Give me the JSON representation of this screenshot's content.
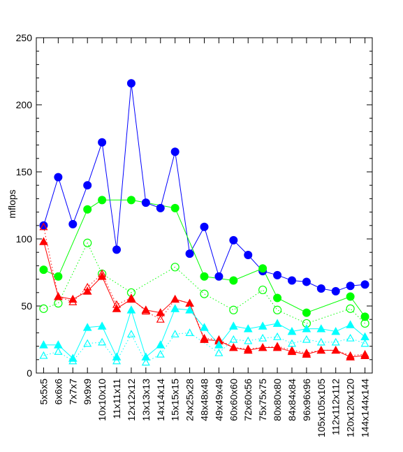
{
  "chart_data": {
    "type": "line",
    "title": "",
    "xlabel": "",
    "ylabel": "mflops",
    "ylim": [
      0,
      250
    ],
    "yticks": [
      0,
      50,
      100,
      150,
      200,
      250
    ],
    "grid": false,
    "legend": "none",
    "categories": [
      "5x5x5",
      "6x6x6",
      "7x7x7",
      "9x9x9",
      "10x10x10",
      "11x11x11",
      "12x12x12",
      "13x13x13",
      "14x14x14",
      "15x15x15",
      "24x25x28",
      "48x48x48",
      "49x49x49",
      "60x60x60",
      "72x60x56",
      "75x75x75",
      "80x80x80",
      "84x84x84",
      "96x96x96",
      "105x105x105",
      "112x112x112",
      "120x120x120",
      "144x144x144"
    ],
    "series": [
      {
        "color": "#0000ff",
        "marker": "filled-circle",
        "line": "solid",
        "values": [
          110,
          146,
          111,
          140,
          172,
          92,
          216,
          127,
          123,
          165,
          89,
          109,
          72,
          99,
          88,
          76,
          73,
          69,
          68,
          63,
          61,
          65,
          66
        ]
      },
      {
        "color": "#00ff00",
        "marker": "filled-circle",
        "line": "solid",
        "values": [
          77,
          72,
          null,
          122,
          129,
          null,
          129,
          null,
          null,
          123,
          null,
          72,
          null,
          69,
          null,
          78,
          56,
          null,
          45,
          null,
          null,
          57,
          42
        ]
      },
      {
        "color": "#00ff00",
        "marker": "open-circle",
        "line": "dotted",
        "values": [
          48,
          52,
          null,
          97,
          74,
          null,
          60,
          null,
          null,
          79,
          null,
          59,
          null,
          47,
          null,
          62,
          47,
          null,
          37,
          null,
          null,
          48,
          37
        ]
      },
      {
        "color": "#ff0000",
        "marker": "filled-triangle",
        "line": "solid",
        "values": [
          98,
          57,
          55,
          61,
          72,
          48,
          55,
          47,
          45,
          55,
          52,
          25,
          24,
          19,
          17,
          19,
          19,
          16,
          14,
          17,
          17,
          12,
          13
        ]
      },
      {
        "color": "#ff0000",
        "marker": "open-triangle",
        "line": "dotted",
        "values": [
          109,
          57,
          53,
          64,
          74,
          51,
          56,
          46,
          40,
          55,
          52,
          26,
          25,
          19,
          18,
          19,
          20,
          17,
          15,
          17,
          17,
          13,
          14
        ]
      },
      {
        "color": "#00ffff",
        "marker": "filled-triangle",
        "line": "solid",
        "values": [
          21,
          21,
          11,
          34,
          35,
          12,
          47,
          12,
          21,
          48,
          47,
          34,
          21,
          35,
          33,
          35,
          37,
          31,
          33,
          33,
          31,
          36,
          27
        ]
      },
      {
        "color": "#00ffff",
        "marker": "open-triangle",
        "line": "dotted",
        "values": [
          13,
          16,
          9,
          22,
          23,
          9,
          29,
          8,
          14,
          29,
          30,
          null,
          15,
          25,
          24,
          26,
          27,
          22,
          25,
          23,
          23,
          26,
          22
        ]
      }
    ]
  }
}
